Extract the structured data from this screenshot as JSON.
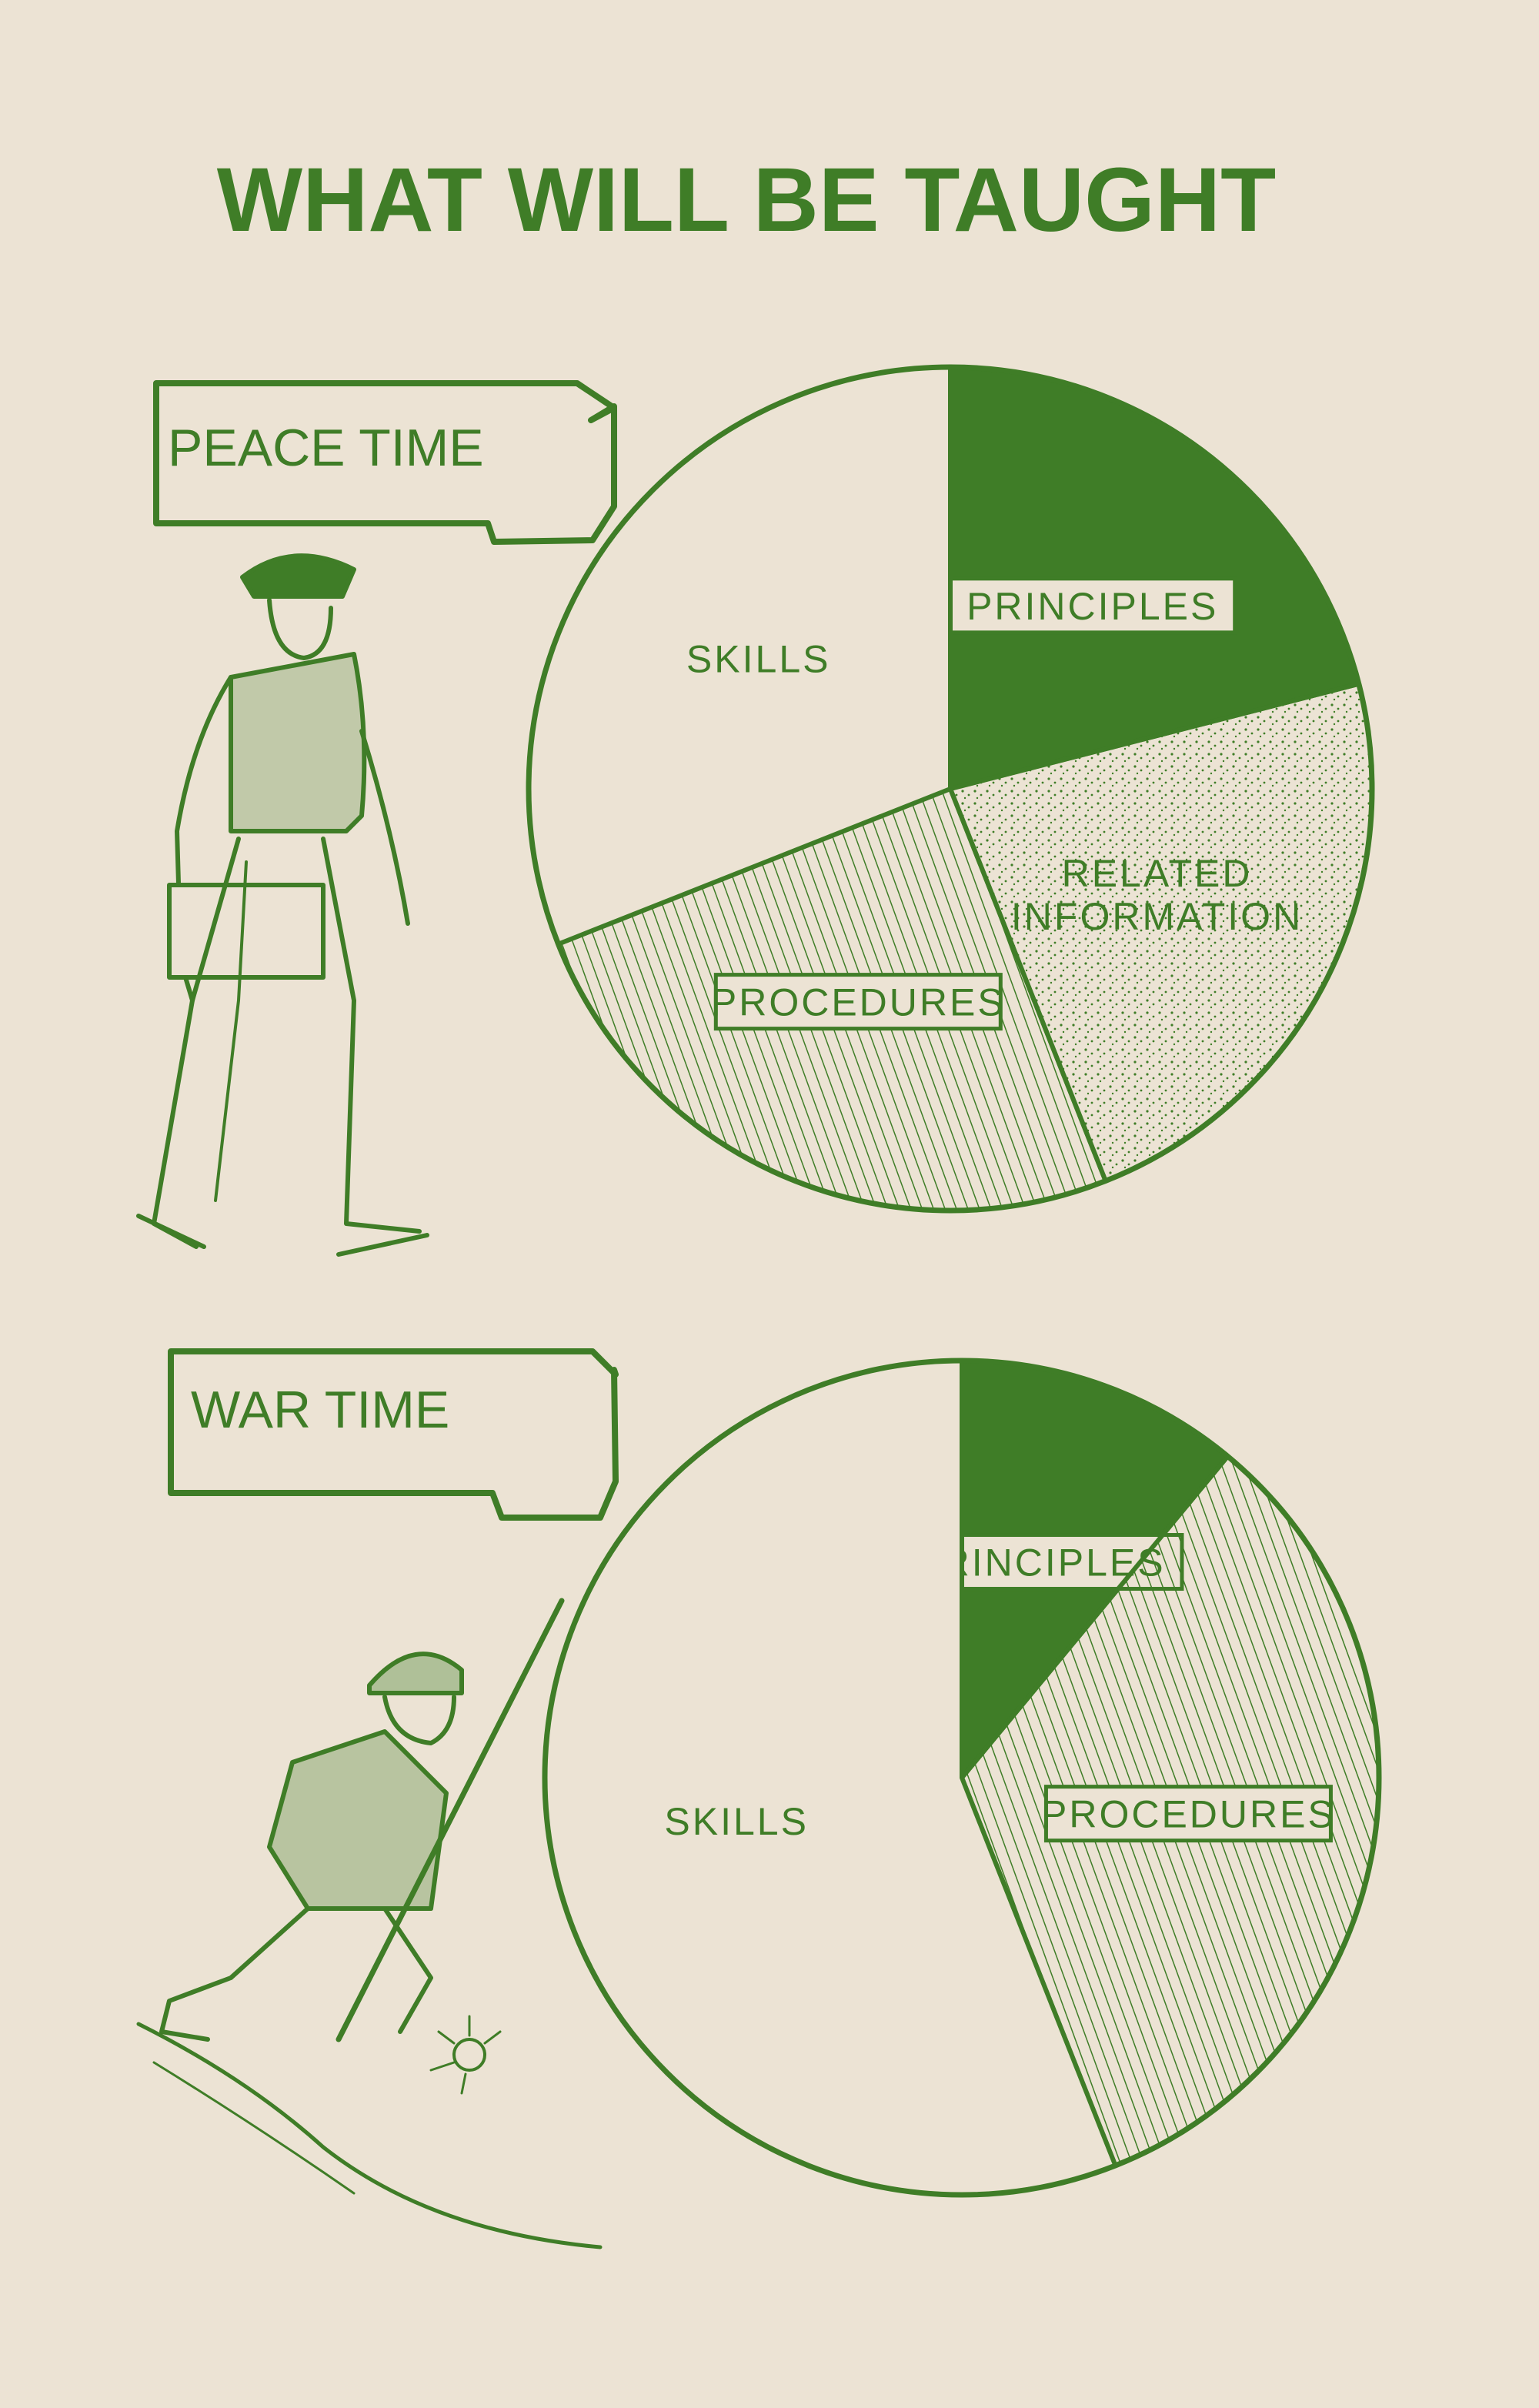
{
  "title": "WHAT WILL BE TAUGHT",
  "colors": {
    "ink": "#3f7d27",
    "paper": "#ece3d4"
  },
  "chart_data": [
    {
      "type": "pie",
      "title": "PEACE TIME",
      "categories": [
        "PRINCIPLES",
        "RELATED INFORMATION",
        "PROCEDURES",
        "SKILLS"
      ],
      "values": [
        21,
        23,
        25,
        31
      ],
      "fills": [
        "solid",
        "dotted",
        "hatched",
        "blank"
      ],
      "label_lines": [
        [
          "PRINCIPLES"
        ],
        [
          "RELATED",
          "INFORMATION"
        ],
        [
          "PROCEDURES"
        ],
        [
          "SKILLS"
        ]
      ],
      "label_boxed": [
        true,
        false,
        true,
        false
      ],
      "illustration": "officer-walking"
    },
    {
      "type": "pie",
      "title": "WAR TIME",
      "categories": [
        "PRINCIPLES",
        "PROCEDURES",
        "SKILLS"
      ],
      "values": [
        11,
        33,
        56
      ],
      "fills": [
        "solid",
        "hatched",
        "blank"
      ],
      "label_lines": [
        [
          "PRINCIPLES"
        ],
        [
          "PROCEDURES"
        ],
        [
          "SKILLS"
        ]
      ],
      "label_boxed": [
        true,
        true,
        false
      ],
      "illustration": "soldier-charging"
    }
  ]
}
